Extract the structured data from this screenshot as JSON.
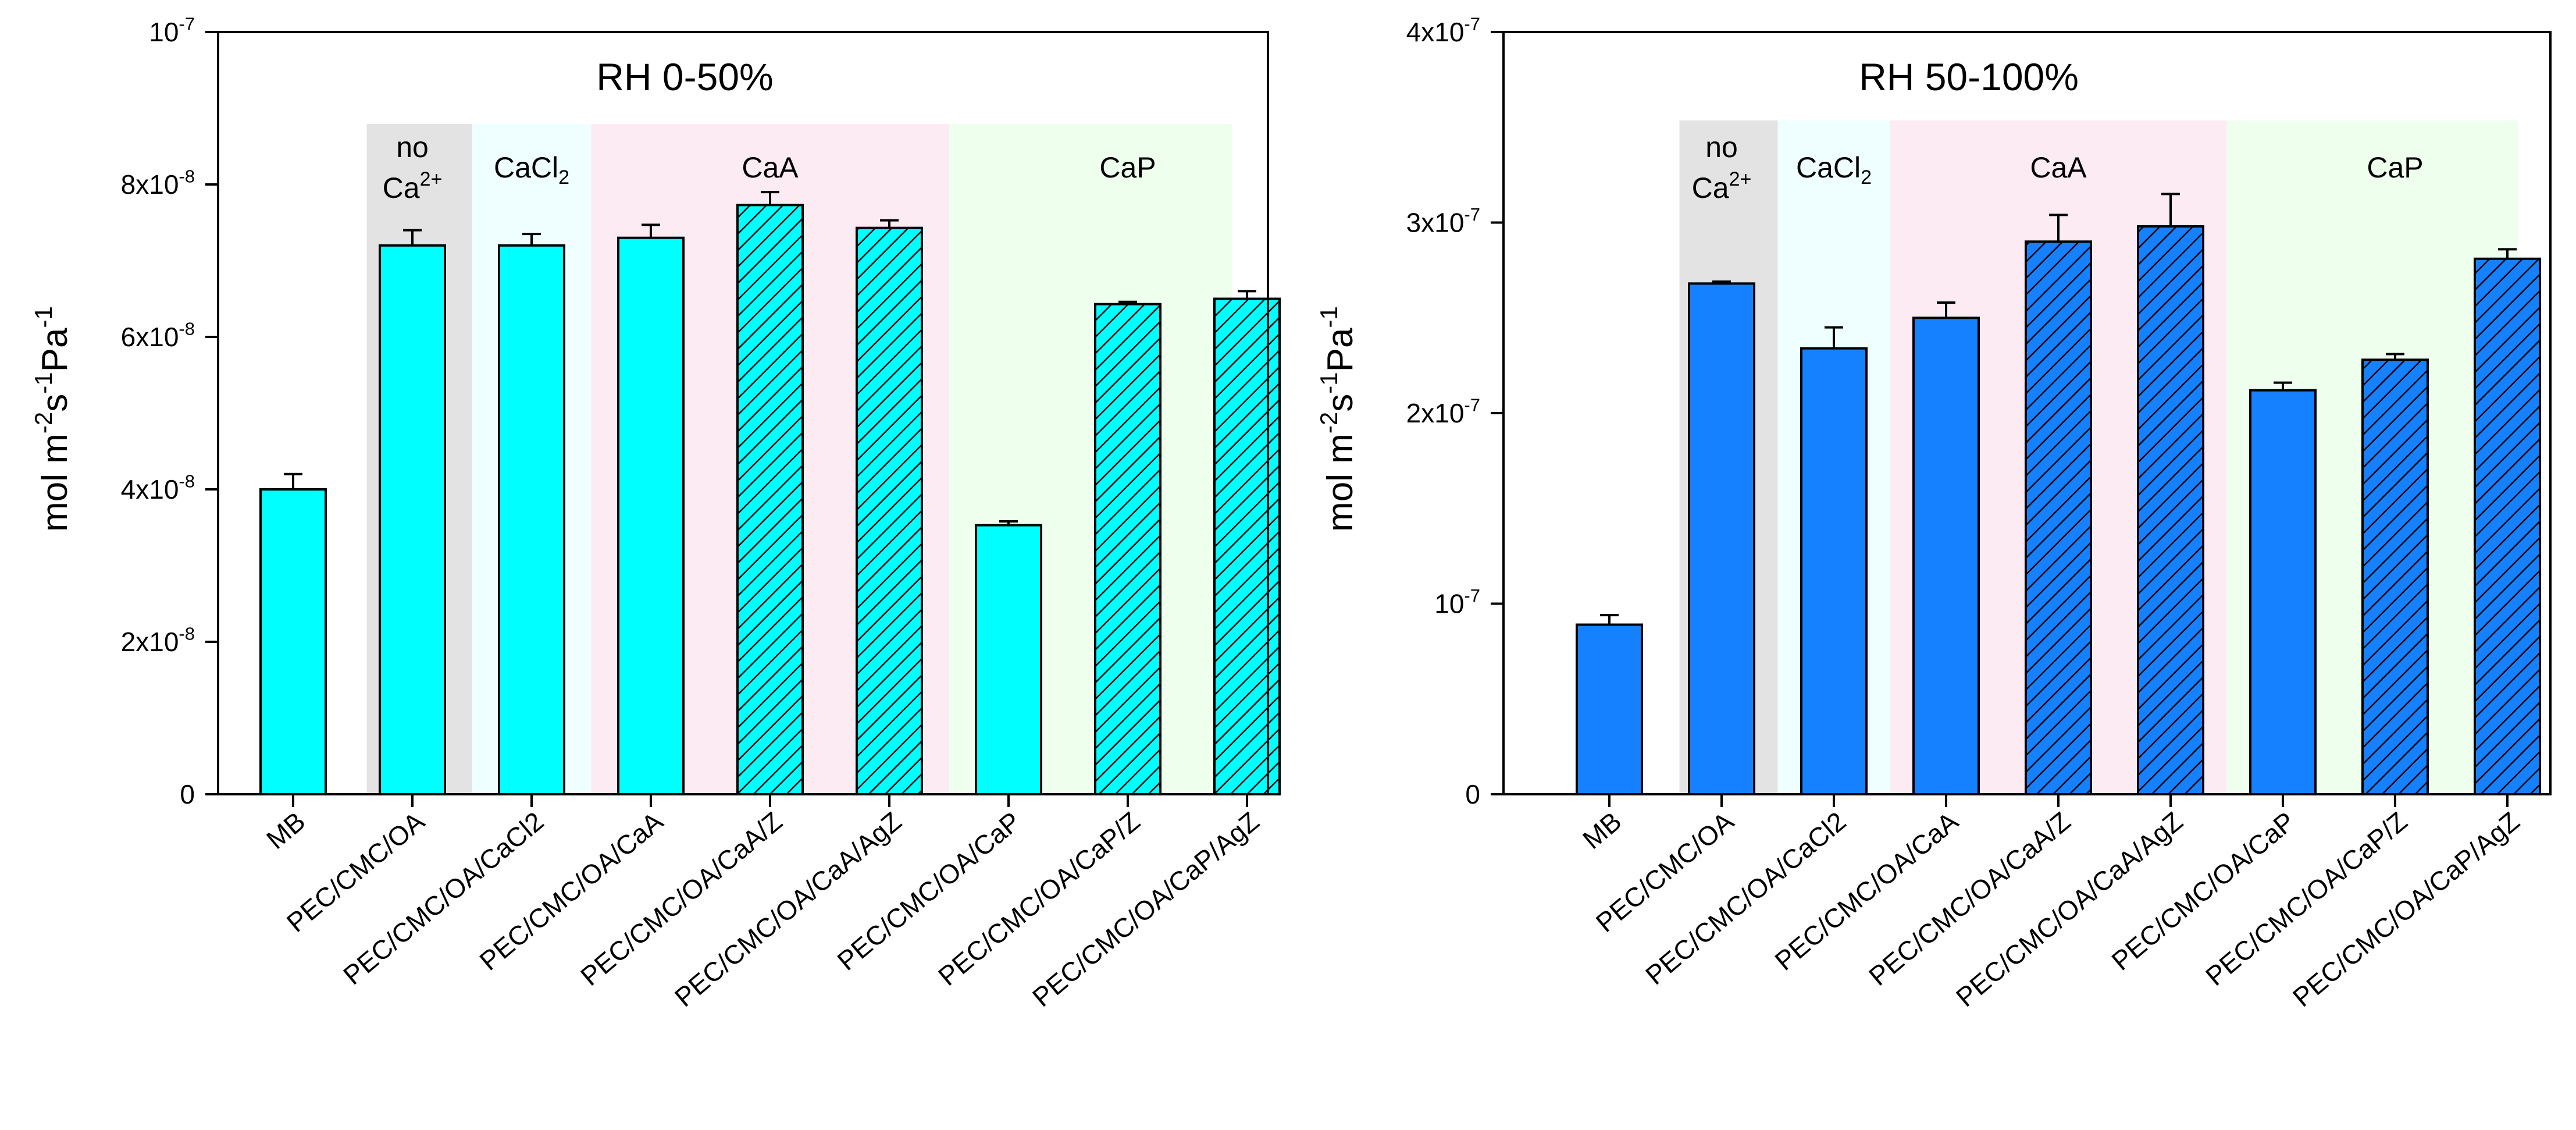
{
  "chart_data": [
    {
      "type": "bar",
      "title": "RH 0-50%",
      "ylabel": "mol m-2s-1Pa-1",
      "xlabel": "",
      "ylim": [
        0,
        1e-07
      ],
      "yticks": [
        {
          "value": 0,
          "label": "0"
        },
        {
          "value": 2e-08,
          "label": "2x10-8"
        },
        {
          "value": 4e-08,
          "label": "4x10-8"
        },
        {
          "value": 6e-08,
          "label": "6x10-8"
        },
        {
          "value": 8e-08,
          "label": "8x10-8"
        },
        {
          "value": 1e-07,
          "label": "10-7"
        }
      ],
      "categories": [
        "MB",
        "PEC/CMC/OA",
        "PEC/CMC/OA/CaCl2",
        "PEC/CMC/OA/CaA",
        "PEC/CMC/OA/CaA/Z",
        "PEC/CMC/OA/CaA/AgZ",
        "PEC/CMC/OA/CaP",
        "PEC/CMC/OA/CaP/Z",
        "PEC/CMC/OA/CaP/AgZ"
      ],
      "values": [
        4e-08,
        7.2e-08,
        7.2e-08,
        7.3e-08,
        7.73e-08,
        7.43e-08,
        3.53e-08,
        6.43e-08,
        6.5e-08
      ],
      "errors": [
        2e-09,
        2e-09,
        1.5e-09,
        1.7e-09,
        1.7e-09,
        1e-09,
        5e-10,
        3e-10,
        1e-09
      ],
      "hatched": [
        false,
        false,
        false,
        false,
        true,
        true,
        false,
        true,
        true
      ],
      "bar_color": "#00FFFF",
      "groups": [
        {
          "name": "no Ca2+",
          "from": 1,
          "to": 1,
          "color": "#E3E3E3"
        },
        {
          "name": "CaCl2",
          "from": 2,
          "to": 2,
          "color": "#EFFFFF"
        },
        {
          "name": "CaA",
          "from": 3,
          "to": 5,
          "color": "#FDEBF3"
        },
        {
          "name": "CaP",
          "from": 6,
          "to": 8,
          "color": "#EEFFEE"
        }
      ]
    },
    {
      "type": "bar",
      "title": "RH 50-100%",
      "ylabel": "mol m-2s-1Pa-1",
      "xlabel": "",
      "ylim": [
        0,
        4e-07
      ],
      "yticks": [
        {
          "value": 0,
          "label": "0"
        },
        {
          "value": 1e-07,
          "label": "10-7"
        },
        {
          "value": 2e-07,
          "label": "2x10-7"
        },
        {
          "value": 3e-07,
          "label": "3x10-7"
        },
        {
          "value": 4e-07,
          "label": "4x10-7"
        }
      ],
      "categories": [
        "MB",
        "PEC/CMC/OA",
        "PEC/CMC/OA/CaCl2",
        "PEC/CMC/OA/CaA",
        "PEC/CMC/OA/CaA/Z",
        "PEC/CMC/OA/CaA/AgZ",
        "PEC/CMC/OA/CaP",
        "PEC/CMC/OA/CaP/Z",
        "PEC/CMC/OA/CaP/AgZ"
      ],
      "values": [
        8.9e-08,
        2.68e-07,
        2.34e-07,
        2.5e-07,
        2.9e-07,
        2.98e-07,
        2.12e-07,
        2.28e-07,
        2.81e-07
      ],
      "errors": [
        5e-09,
        1e-09,
        1.1e-08,
        8e-09,
        1.4e-08,
        1.7e-08,
        4e-09,
        3e-09,
        5e-09
      ],
      "hatched": [
        false,
        false,
        false,
        false,
        true,
        true,
        false,
        true,
        true
      ],
      "bar_color": "#1681FF",
      "groups": [
        {
          "name": "no Ca2+",
          "from": 1,
          "to": 1,
          "color": "#E3E3E3"
        },
        {
          "name": "CaCl2",
          "from": 2,
          "to": 2,
          "color": "#EFFFFF"
        },
        {
          "name": "CaA",
          "from": 3,
          "to": 5,
          "color": "#FDEBF3"
        },
        {
          "name": "CaP",
          "from": 6,
          "to": 8,
          "color": "#EEFFEE"
        }
      ]
    }
  ]
}
